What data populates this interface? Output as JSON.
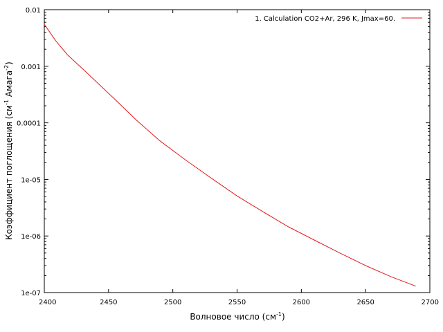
{
  "chart_data": {
    "type": "line",
    "title": "",
    "xlabel": "Волновое число (см",
    "xlabel_sup": "-1",
    "xlabel_tail": ")",
    "ylabel": "Коэффициент поглощения (см",
    "ylabel_sup1": "-1",
    "ylabel_mid": " Амага",
    "ylabel_sup2": "-2",
    "ylabel_tail": ")",
    "x_scale": "linear",
    "y_scale": "log",
    "xlim": [
      2400,
      2700
    ],
    "ylim": [
      1e-07,
      0.01
    ],
    "x_ticks": [
      2400,
      2450,
      2500,
      2550,
      2600,
      2650,
      2700
    ],
    "x_tick_labels": [
      "2400",
      "2450",
      "2500",
      "2550",
      "2600",
      "2650",
      "2700"
    ],
    "y_ticks": [
      1e-07,
      1e-06,
      1e-05,
      0.0001,
      0.001,
      0.01
    ],
    "y_tick_labels": [
      "1e-07",
      "1e-06",
      "1e-05",
      "0.0001",
      "0.001",
      "0.01"
    ],
    "grid": false,
    "legend_position": "top-right",
    "series": [
      {
        "name": "1. Calculation  CO2+Ar, 296 K, Jmax=60.",
        "color": "#e41a1c",
        "x": [
          2400,
          2409,
          2418,
          2431,
          2443,
          2455,
          2472,
          2490,
          2510,
          2530,
          2550,
          2570,
          2590,
          2610,
          2630,
          2650,
          2670,
          2689
        ],
        "y": [
          0.0055,
          0.0028,
          0.0016,
          0.00085,
          0.00047,
          0.00026,
          0.00011,
          4.8e-05,
          2.2e-05,
          1.05e-05,
          5.1e-06,
          2.7e-06,
          1.45e-06,
          8.5e-07,
          5e-07,
          3e-07,
          1.9e-07,
          1.3e-07
        ]
      }
    ]
  }
}
